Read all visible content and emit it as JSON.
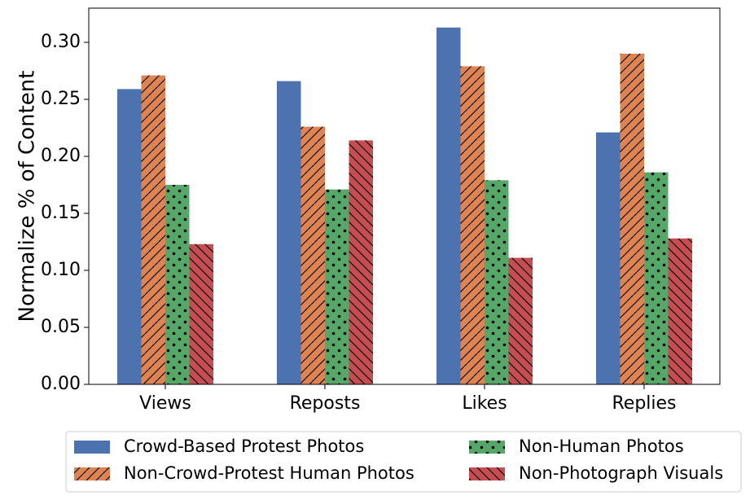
{
  "chart_data": {
    "type": "bar",
    "ylabel": "Normalize % of Content",
    "xlabel": "",
    "ylim": [
      0,
      0.33
    ],
    "yticks": [
      "0.00",
      "0.05",
      "0.10",
      "0.15",
      "0.20",
      "0.25",
      "0.30"
    ],
    "categories": [
      "Views",
      "Reposts",
      "Likes",
      "Replies"
    ],
    "legend_placement": "bottom",
    "series": [
      {
        "name": "Crowd-Based Protest Photos",
        "color": "#4c72b0",
        "pattern": "none",
        "values": [
          0.259,
          0.266,
          0.313,
          0.221
        ]
      },
      {
        "name": "Non-Crowd-Protest Human Photos",
        "color": "#dd8452",
        "pattern": "diagonal-forward",
        "values": [
          0.271,
          0.226,
          0.279,
          0.29
        ]
      },
      {
        "name": "Non-Human Photos",
        "color": "#55a868",
        "pattern": "dots",
        "values": [
          0.175,
          0.171,
          0.179,
          0.186
        ]
      },
      {
        "name": "Non-Photograph Visuals",
        "color": "#c44e52",
        "pattern": "diagonal-back",
        "values": [
          0.123,
          0.214,
          0.111,
          0.128
        ]
      }
    ]
  }
}
